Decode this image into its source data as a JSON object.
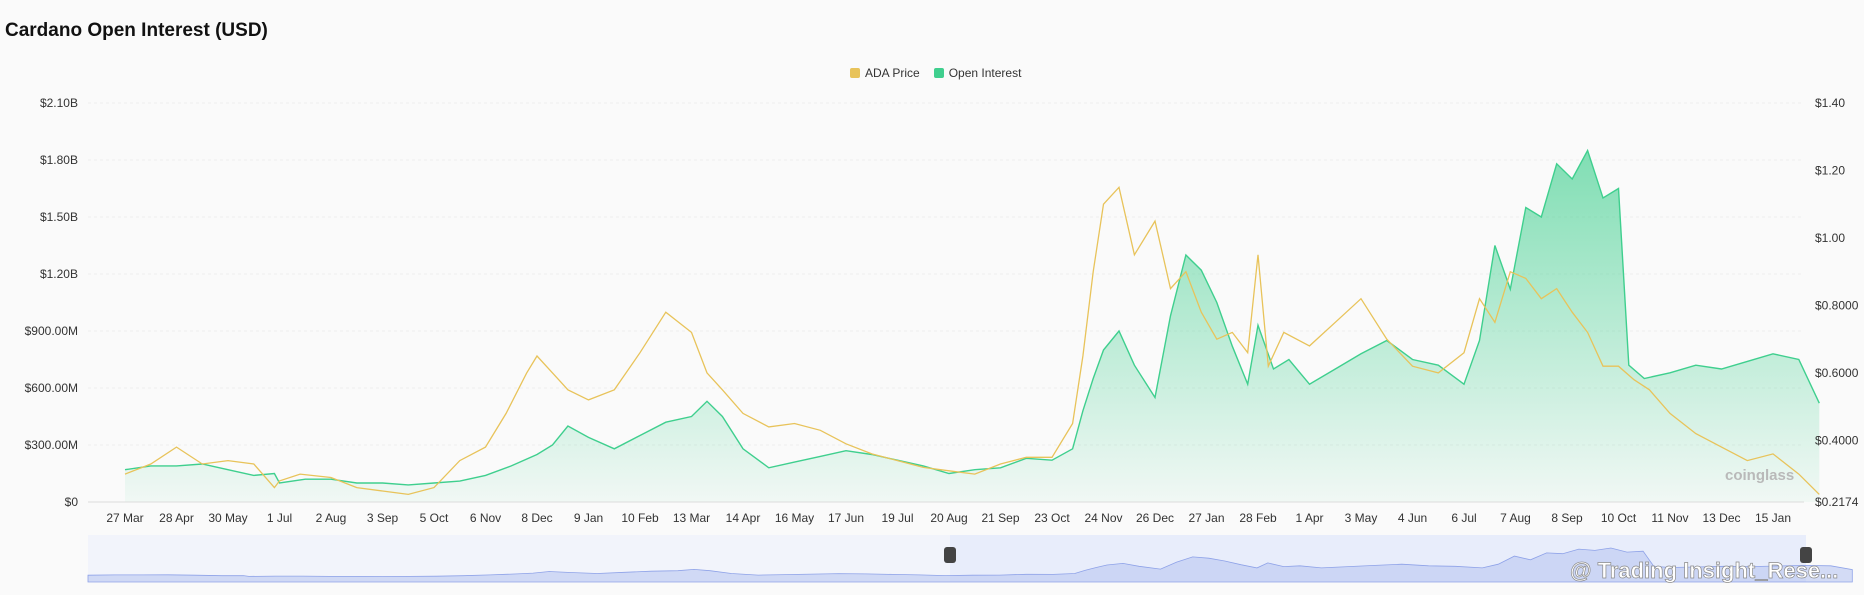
{
  "page": {
    "title": "Cardano Open Interest (USD)",
    "watermark_brand": "coinglass",
    "watermark_credit": "@ Trading Insight_Rese..."
  },
  "colors": {
    "price": "#e8c35a",
    "oi": "#3fcf8e",
    "oi_fill_top": "#3fcf8e",
    "navigator": "#b9c6f2",
    "navigator_bg": "#e8edfb",
    "grid": "#eeeeee"
  },
  "chart_data": {
    "type": "area",
    "title": "Cardano Open Interest (USD)",
    "legend": [
      "ADA Price",
      "Open Interest"
    ],
    "legend_position": "top-center",
    "grid": true,
    "x_labels": [
      "27 Mar",
      "28 Apr",
      "30 May",
      "1 Jul",
      "2 Aug",
      "3 Sep",
      "5 Oct",
      "6 Nov",
      "8 Dec",
      "9 Jan",
      "10 Feb",
      "13 Mar",
      "14 Apr",
      "16 May",
      "17 Jun",
      "19 Jul",
      "20 Aug",
      "21 Sep",
      "23 Oct",
      "24 Nov",
      "26 Dec",
      "27 Jan",
      "28 Feb",
      "1 Apr",
      "3 May",
      "4 Jun",
      "6 Jul",
      "7 Aug",
      "8 Sep",
      "10 Oct",
      "11 Nov",
      "13 Dec",
      "15 Jan"
    ],
    "y_left": {
      "label": "Open Interest",
      "ticks": [
        "$0",
        "$300.00M",
        "$600.00M",
        "$900.00M",
        "$1.20B",
        "$1.50B",
        "$1.80B",
        "$2.10B"
      ],
      "range": [
        0,
        2.1
      ],
      "unit": "B USD"
    },
    "y_right": {
      "label": "ADA Price",
      "ticks": [
        "$0.2174",
        "$0.4000",
        "$0.6000",
        "$0.8000",
        "$1.00",
        "$1.20",
        "$1.40"
      ],
      "range": [
        0.2174,
        1.4
      ]
    },
    "series": [
      {
        "name": "Open Interest",
        "axis": "left",
        "x_index": [
          0,
          0.5,
          1,
          1.5,
          2,
          2.5,
          2.9,
          3,
          3.5,
          4,
          4.5,
          5,
          5.5,
          6,
          6.5,
          7,
          7.5,
          8,
          8.3,
          8.6,
          9,
          9.5,
          10,
          10.5,
          11,
          11.3,
          11.6,
          12,
          12.5,
          13,
          13.5,
          14,
          14.5,
          15,
          15.5,
          16,
          16.5,
          17,
          17.5,
          18,
          18.4,
          18.6,
          18.8,
          19,
          19.3,
          19.6,
          20,
          20.3,
          20.6,
          20.9,
          21.2,
          21.5,
          21.8,
          22,
          22.3,
          22.6,
          23,
          23.5,
          24,
          24.5,
          25,
          25.5,
          26,
          26.3,
          26.6,
          26.9,
          27.2,
          27.5,
          27.8,
          28.1,
          28.4,
          28.7,
          29,
          29.2,
          29.5,
          30,
          30.5,
          31,
          31.5,
          32,
          32.5,
          32.9
        ],
        "values": [
          0.17,
          0.19,
          0.19,
          0.2,
          0.17,
          0.14,
          0.15,
          0.1,
          0.12,
          0.12,
          0.1,
          0.1,
          0.09,
          0.1,
          0.11,
          0.14,
          0.19,
          0.25,
          0.3,
          0.4,
          0.34,
          0.28,
          0.35,
          0.42,
          0.45,
          0.53,
          0.45,
          0.28,
          0.18,
          0.21,
          0.24,
          0.27,
          0.25,
          0.22,
          0.19,
          0.15,
          0.17,
          0.18,
          0.23,
          0.22,
          0.28,
          0.48,
          0.65,
          0.8,
          0.9,
          0.72,
          0.55,
          0.98,
          1.3,
          1.22,
          1.05,
          0.82,
          0.62,
          0.93,
          0.7,
          0.75,
          0.62,
          0.7,
          0.78,
          0.85,
          0.75,
          0.72,
          0.62,
          0.85,
          1.35,
          1.12,
          1.55,
          1.5,
          1.78,
          1.7,
          1.85,
          1.6,
          1.65,
          0.72,
          0.65,
          0.68,
          0.72,
          0.7,
          0.74,
          0.78,
          0.75,
          0.52
        ]
      },
      {
        "name": "ADA Price",
        "axis": "right",
        "x_index": [
          0,
          0.5,
          1,
          1.5,
          2,
          2.5,
          2.9,
          3,
          3.4,
          4,
          4.5,
          5,
          5.5,
          6,
          6.5,
          7,
          7.4,
          7.8,
          8,
          8.3,
          8.6,
          9,
          9.5,
          10,
          10.5,
          11,
          11.3,
          11.6,
          12,
          12.5,
          13,
          13.5,
          14,
          14.5,
          15,
          15.5,
          16,
          16.5,
          17,
          17.5,
          18,
          18.4,
          18.6,
          18.8,
          19,
          19.3,
          19.6,
          20,
          20.3,
          20.6,
          20.9,
          21.2,
          21.5,
          21.8,
          22,
          22.2,
          22.5,
          23,
          23.5,
          24,
          24.5,
          25,
          25.5,
          26,
          26.3,
          26.6,
          26.9,
          27.2,
          27.5,
          27.8,
          28.1,
          28.4,
          28.7,
          29,
          29.3,
          29.6,
          30,
          30.5,
          31,
          31.5,
          32,
          32.5,
          32.9
        ],
        "values": [
          0.3,
          0.33,
          0.38,
          0.33,
          0.34,
          0.33,
          0.26,
          0.28,
          0.3,
          0.29,
          0.26,
          0.25,
          0.24,
          0.26,
          0.34,
          0.38,
          0.48,
          0.6,
          0.65,
          0.6,
          0.55,
          0.52,
          0.55,
          0.66,
          0.78,
          0.72,
          0.6,
          0.55,
          0.48,
          0.44,
          0.45,
          0.43,
          0.39,
          0.36,
          0.34,
          0.32,
          0.31,
          0.3,
          0.33,
          0.35,
          0.35,
          0.45,
          0.65,
          0.9,
          1.1,
          1.15,
          0.95,
          1.05,
          0.85,
          0.9,
          0.78,
          0.7,
          0.72,
          0.66,
          0.95,
          0.62,
          0.72,
          0.68,
          0.75,
          0.82,
          0.7,
          0.62,
          0.6,
          0.66,
          0.82,
          0.75,
          0.9,
          0.88,
          0.82,
          0.85,
          0.78,
          0.72,
          0.62,
          0.62,
          0.58,
          0.55,
          0.48,
          0.42,
          0.38,
          0.34,
          0.36,
          0.3,
          0.24
        ]
      }
    ]
  }
}
